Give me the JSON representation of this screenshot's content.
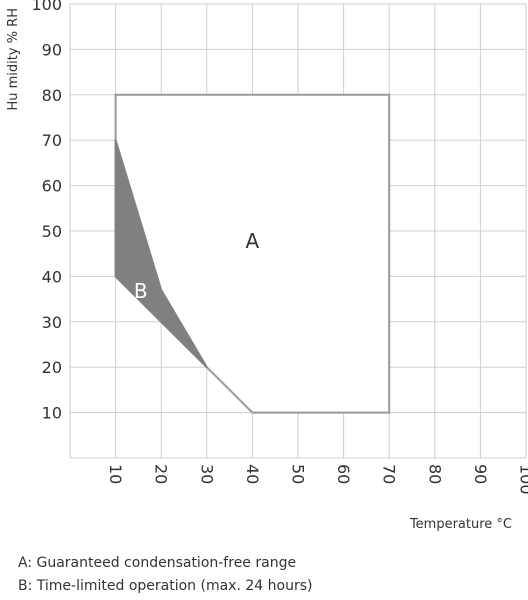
{
  "chart_data": {
    "type": "area",
    "xlabel": "Temperature °C",
    "ylabel": "Hu midity % RH",
    "x_ticks": [
      10,
      20,
      30,
      40,
      50,
      60,
      70,
      80,
      90,
      100
    ],
    "y_ticks": [
      10,
      20,
      30,
      40,
      50,
      60,
      70,
      80,
      90,
      100
    ],
    "xlim": [
      0,
      100
    ],
    "ylim": [
      0,
      100
    ],
    "grid": true,
    "regions": [
      {
        "label": "A",
        "fill_color": "#ffffff",
        "edge_color": "#999999",
        "points": [
          [
            10,
            80
          ],
          [
            70,
            80
          ],
          [
            70,
            10
          ],
          [
            40,
            10
          ],
          [
            30,
            20
          ],
          [
            10,
            40
          ],
          [
            10,
            70
          ]
        ]
      },
      {
        "label": "B",
        "fill_color": "#808080",
        "edge_color": "#808080",
        "points": [
          [
            10,
            70
          ],
          [
            20,
            37
          ],
          [
            30,
            20
          ],
          [
            10,
            40
          ]
        ]
      }
    ],
    "legend": [
      "A: Guaranteed condensation-free range",
      "B: Time-limited operation (max. 24 hours)"
    ]
  },
  "colors": {
    "grid": "#cfcfcf",
    "outline": "#999999",
    "text": "#333333"
  }
}
